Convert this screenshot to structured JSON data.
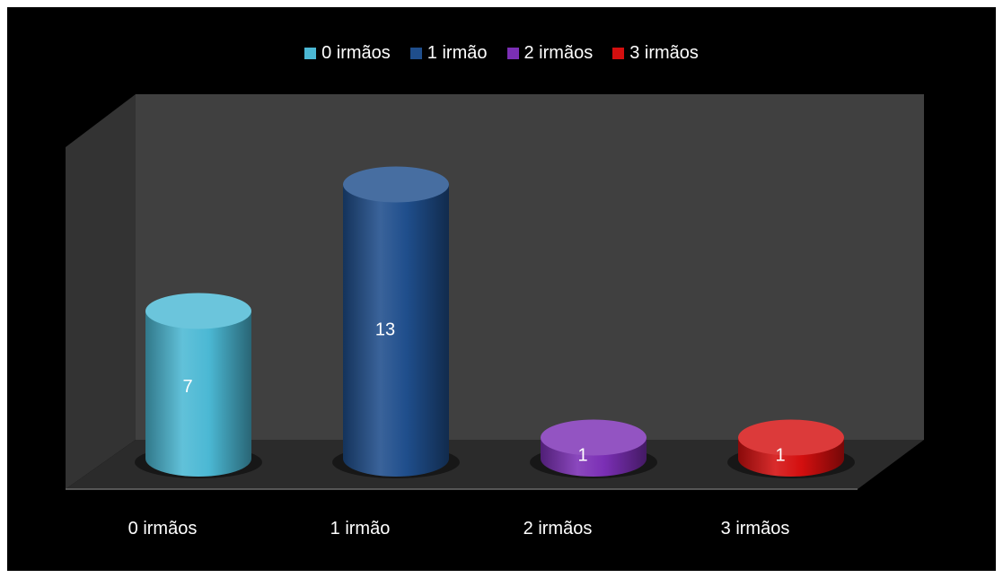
{
  "chart_data": {
    "type": "bar",
    "categories": [
      "0 irmãos",
      "1 irmão",
      "2 irmãos",
      "3 irmãos"
    ],
    "values": [
      7,
      13,
      1,
      1
    ],
    "data_labels": [
      "7",
      "13",
      "1",
      "1"
    ],
    "legend": [
      "0 irmãos",
      "1 irmão",
      "2 irmãos",
      "3 irmãos"
    ],
    "legend_position": "top",
    "colors": [
      "#4BB8D4",
      "#1F4E8C",
      "#7B2FB5",
      "#D40F0F"
    ],
    "style": "3d-cylinder",
    "grid": false,
    "ylim": [
      0,
      14
    ]
  }
}
